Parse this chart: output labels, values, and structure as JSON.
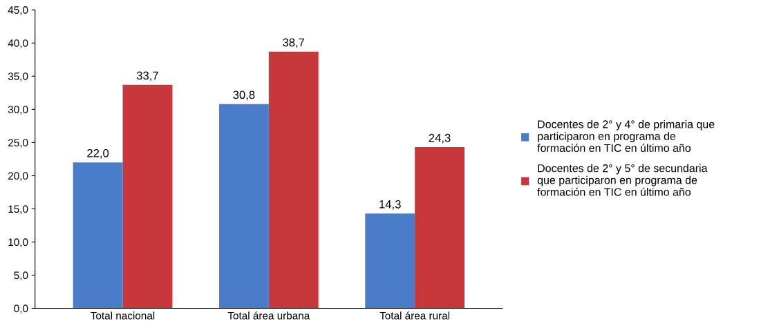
{
  "chart_data": {
    "type": "bar",
    "categories": [
      "Total nacional",
      "Total área urbana",
      "Total área rural"
    ],
    "series": [
      {
        "name": "Docentes de 2° y 4° de primaria que\nparticiparon en programa de\nformación en TIC en último año",
        "color": "#4a7cc9",
        "values": [
          22.0,
          30.8,
          14.3
        ],
        "value_labels": [
          "22,0",
          "30,8",
          "14,3"
        ]
      },
      {
        "name": "Docentes de 2° y 5° de secundaria\nque participaron en programa de\nformación en TIC en último año",
        "color": "#c8383a",
        "values": [
          33.7,
          38.7,
          24.3
        ],
        "value_labels": [
          "33,7",
          "38,7",
          "24,3"
        ]
      }
    ],
    "ylim": [
      0,
      45
    ],
    "yticks": [
      {
        "value": 0,
        "label": "0,0"
      },
      {
        "value": 5,
        "label": "5,0"
      },
      {
        "value": 10,
        "label": "10,0"
      },
      {
        "value": 15,
        "label": "15,0"
      },
      {
        "value": 20,
        "label": "20,0"
      },
      {
        "value": 25,
        "label": "25,0"
      },
      {
        "value": 30,
        "label": "30,0"
      },
      {
        "value": 35,
        "label": "35,0"
      },
      {
        "value": 40,
        "label": "40,0"
      },
      {
        "value": 45,
        "label": "45,0"
      }
    ],
    "grid": false,
    "legend": "right"
  }
}
